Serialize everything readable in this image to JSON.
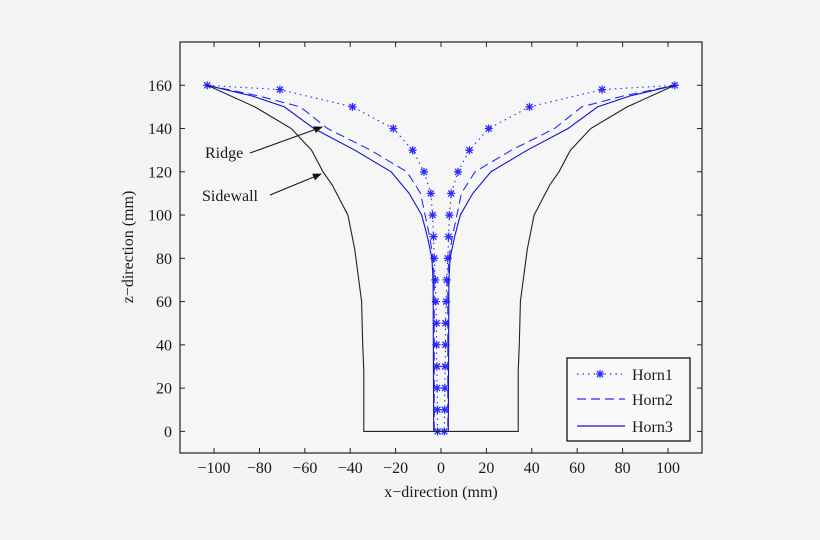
{
  "chart_data": {
    "type": "line",
    "title": "",
    "xlabel": "x−direction (mm)",
    "ylabel": "z−direction (mm)",
    "xlim": [
      -115,
      115
    ],
    "ylim": [
      -10,
      180
    ],
    "xticks": [
      -100,
      -80,
      -60,
      -40,
      -20,
      0,
      20,
      40,
      60,
      80,
      100
    ],
    "yticks": [
      0,
      20,
      40,
      60,
      80,
      100,
      120,
      140,
      160
    ],
    "grid": false,
    "legend_position": "bottom-right",
    "series": [
      {
        "name": "Horn1",
        "color": "#2a2aff",
        "style": "dotted",
        "marker": "star",
        "x": [
          -103,
          -71,
          -39,
          -21,
          -12.5,
          -7.5,
          -4.5,
          -3.7,
          -3.3,
          -3,
          -2.5,
          -2.3,
          -2,
          -2,
          -1.8,
          -1.7,
          -1.6,
          -1.5,
          1.5,
          1.6,
          1.7,
          1.8,
          2,
          2,
          2.3,
          2.5,
          3,
          3.3,
          3.7,
          4.5,
          7.5,
          12.5,
          21,
          39,
          71,
          103
        ],
        "z": [
          160,
          158,
          150,
          140,
          130,
          120,
          110,
          100,
          90,
          80,
          70,
          60,
          50,
          40,
          30,
          20,
          10,
          0,
          0,
          10,
          20,
          30,
          40,
          50,
          60,
          70,
          80,
          90,
          100,
          110,
          120,
          130,
          140,
          150,
          158,
          160
        ]
      },
      {
        "name": "Horn2",
        "color": "#2a2aff",
        "style": "dashed",
        "x": [
          -103,
          -80,
          -62,
          -50,
          -31,
          -15,
          -9,
          -7,
          -5,
          -3.5,
          -3,
          -3,
          3,
          3,
          3.5,
          5,
          7,
          9,
          15,
          31,
          50,
          62,
          80,
          103
        ],
        "z": [
          160,
          155,
          150,
          140,
          130,
          120,
          110,
          100,
          90,
          80,
          70,
          0,
          0,
          70,
          80,
          90,
          100,
          110,
          120,
          130,
          140,
          150,
          155,
          160
        ]
      },
      {
        "name": "Horn3",
        "color": "#1010d0",
        "style": "solid",
        "x": [
          -103,
          -83,
          -69,
          -56,
          -38,
          -22,
          -14,
          -8.5,
          -6,
          -4,
          -3.5,
          -3.2,
          3.2,
          3.5,
          4,
          6,
          8.5,
          14,
          22,
          38,
          56,
          69,
          83,
          103
        ],
        "z": [
          160,
          155,
          150,
          140,
          130,
          120,
          110,
          100,
          90,
          80,
          70,
          0,
          0,
          70,
          80,
          90,
          100,
          110,
          120,
          130,
          140,
          150,
          155,
          160
        ]
      },
      {
        "color": "#222222",
        "style": "solid",
        "x": [
          -103,
          -82,
          -66,
          -57,
          -52,
          -48,
          -41,
          -38,
          -35,
          -34.5,
          -34,
          -34,
          34,
          34,
          34.5,
          35,
          38,
          41,
          48,
          52,
          57,
          66,
          82,
          103
        ],
        "z": [
          160,
          150,
          140,
          130,
          120,
          114,
          100,
          84,
          60,
          40,
          28,
          0,
          0,
          28,
          40,
          60,
          84,
          100,
          114,
          120,
          130,
          140,
          150,
          160
        ]
      }
    ],
    "annotations": [
      {
        "text": "Ridge"
      },
      {
        "text": "Sidewall"
      }
    ]
  }
}
